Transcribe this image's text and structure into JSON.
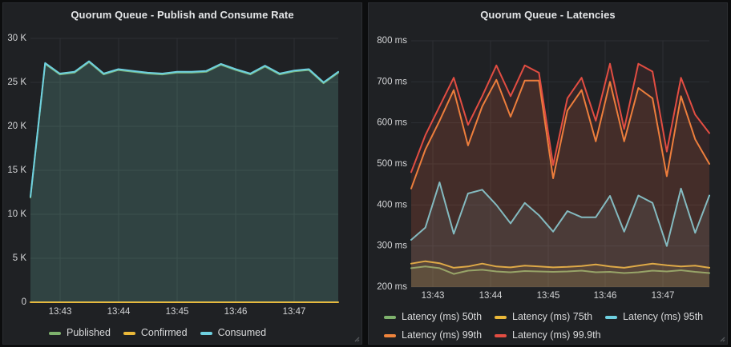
{
  "panels": [
    {
      "title": "Quorum Queue - Publish and Consume Rate",
      "chart_data": {
        "type": "line",
        "x_tick_labels": [
          "13:43",
          "13:44",
          "13:45",
          "13:46",
          "13:47"
        ],
        "ylim": [
          0,
          30000
        ],
        "y_ticks": [
          {
            "value": 30000,
            "label": "30 K"
          },
          {
            "value": 25000,
            "label": "25 K"
          },
          {
            "value": 20000,
            "label": "20 K"
          },
          {
            "value": 15000,
            "label": "15 K"
          },
          {
            "value": 10000,
            "label": "10 K"
          },
          {
            "value": 5000,
            "label": "5 K"
          },
          {
            "value": 0,
            "label": "0"
          }
        ],
        "legend_position": "bottom",
        "grid": true,
        "series": [
          {
            "name": "Published",
            "color": "#7EB26D",
            "fill_opacity": 0.1,
            "values": [
              11900,
              27100,
              25900,
              26100,
              27300,
              25900,
              26400,
              26200,
              26000,
              25900,
              26100,
              26100,
              26200,
              27000,
              26400,
              25900,
              26800,
              25900,
              26250,
              26400,
              24900,
              26100
            ]
          },
          {
            "name": "Confirmed",
            "color": "#EAB839",
            "fill_opacity": 0,
            "values": [
              0,
              0,
              0,
              0,
              0,
              0,
              0,
              0,
              0,
              0,
              0,
              0,
              0,
              0,
              0,
              0,
              0,
              0,
              0,
              0,
              0,
              0
            ]
          },
          {
            "name": "Consumed",
            "color": "#6ED0E0",
            "fill_opacity": 0.13,
            "values": [
              12000,
              27200,
              26000,
              26200,
              27400,
              26000,
              26500,
              26300,
              26100,
              26000,
              26200,
              26200,
              26300,
              27100,
              26500,
              26000,
              26900,
              26000,
              26350,
              26500,
              25000,
              26200
            ]
          }
        ]
      }
    },
    {
      "title": "Quorum Queue - Latencies",
      "chart_data": {
        "type": "line",
        "x_tick_labels": [
          "13:43",
          "13:44",
          "13:45",
          "13:46",
          "13:47"
        ],
        "ylim": [
          200,
          800
        ],
        "y_ticks": [
          {
            "value": 800,
            "label": "800 ms"
          },
          {
            "value": 700,
            "label": "700 ms"
          },
          {
            "value": 600,
            "label": "600 ms"
          },
          {
            "value": 500,
            "label": "500 ms"
          },
          {
            "value": 400,
            "label": "400 ms"
          },
          {
            "value": 300,
            "label": "300 ms"
          },
          {
            "value": 200,
            "label": "200 ms"
          }
        ],
        "legend_position": "bottom",
        "grid": true,
        "series": [
          {
            "name": "Latency (ms) 50th",
            "color": "#7EB26D",
            "fill_opacity": 0.1,
            "values": [
              246,
              250,
              246,
              232,
              240,
              242,
              238,
              236,
              239,
              238,
              237,
              238,
              240,
              236,
              237,
              234,
              236,
              240,
              238,
              241,
              237,
              234
            ]
          },
          {
            "name": "Latency (ms) 75th",
            "color": "#EAB839",
            "fill_opacity": 0.1,
            "values": [
              257,
              263,
              258,
              247,
              250,
              257,
              250,
              248,
              252,
              250,
              248,
              249,
              251,
              255,
              250,
              247,
              252,
              257,
              253,
              250,
              252,
              247
            ]
          },
          {
            "name": "Latency (ms) 95th",
            "color": "#6ED0E0",
            "fill_opacity": 0.1,
            "values": [
              315,
              345,
              455,
              330,
              428,
              437,
              400,
              355,
              405,
              375,
              335,
              385,
              370,
              370,
              422,
              335,
              423,
              405,
              300,
              440,
              332,
              423
            ]
          },
          {
            "name": "Latency (ms) 99th",
            "color": "#EF843C",
            "fill_opacity": 0.1,
            "values": [
              440,
              535,
              605,
              680,
              545,
              640,
              705,
              615,
              703,
              703,
              465,
              630,
              680,
              555,
              700,
              555,
              685,
              660,
              470,
              665,
              560,
              500
            ]
          },
          {
            "name": "Latency (ms) 99.9th",
            "color": "#E24D42",
            "fill_opacity": 0.1,
            "values": [
              480,
              570,
              640,
              710,
              595,
              665,
              740,
              665,
              740,
              722,
              497,
              660,
              710,
              605,
              744,
              585,
              744,
              725,
              530,
              710,
              620,
              575
            ]
          }
        ]
      }
    }
  ],
  "theme": {
    "panel_bg": "#1f2124",
    "page_bg": "#0c0d0e",
    "grid_color": "#2d3034",
    "axis_text_color": "#d3d4d6",
    "title_color": "#e4e6e8",
    "legend_text_color": "#d8d9da"
  }
}
